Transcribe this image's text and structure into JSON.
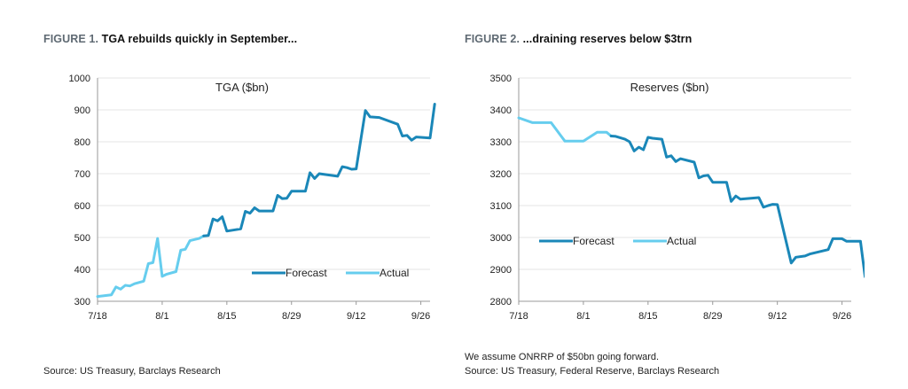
{
  "figure1": {
    "label": "FIGURE 1.",
    "text": "TGA rebuilds quickly in September...",
    "source": "Source: US Treasury, Barclays Research"
  },
  "figure2": {
    "label": "FIGURE 2.",
    "text": "...draining reserves below $3trn",
    "note": "We assume ONRRP of $50bn going forward.",
    "source": "Source: US Treasury, Federal Reserve, Barclays Research"
  },
  "colors": {
    "forecast": "#1a87b8",
    "actual": "#66cdee",
    "axis": "#999999",
    "grid": "#e6e6e6"
  },
  "chart_data": [
    {
      "type": "line",
      "title": "TGA ($bn)",
      "xlabel": "",
      "ylabel": "",
      "xlim": [
        0,
        72
      ],
      "ylim": [
        300,
        1000
      ],
      "yticks": [
        300,
        400,
        500,
        600,
        700,
        800,
        900,
        1000
      ],
      "xticks": [
        {
          "x": 0,
          "label": "7/18"
        },
        {
          "x": 14,
          "label": "8/1"
        },
        {
          "x": 28,
          "label": "8/15"
        },
        {
          "x": 42,
          "label": "8/29"
        },
        {
          "x": 56,
          "label": "9/12"
        },
        {
          "x": 70,
          "label": "9/26"
        }
      ],
      "legend": {
        "position": "bottom-right",
        "entries": [
          "Forecast",
          "Actual"
        ]
      },
      "series": [
        {
          "name": "Actual",
          "points": [
            [
              0,
              315
            ],
            [
              3,
              320
            ],
            [
              4,
              345
            ],
            [
              5,
              338
            ],
            [
              6,
              350
            ],
            [
              7,
              348
            ],
            [
              8,
              355
            ],
            [
              10,
              363
            ],
            [
              11,
              418
            ],
            [
              12,
              421
            ],
            [
              13,
              497
            ],
            [
              14,
              378
            ],
            [
              15,
              385
            ],
            [
              17,
              393
            ],
            [
              18,
              460
            ],
            [
              19,
              463
            ],
            [
              20,
              490
            ],
            [
              22,
              497
            ],
            [
              23,
              505
            ]
          ]
        },
        {
          "name": "Forecast",
          "points": [
            [
              23,
              505
            ],
            [
              24,
              506
            ],
            [
              25,
              558
            ],
            [
              26,
              552
            ],
            [
              27,
              565
            ],
            [
              28,
              520
            ],
            [
              31,
              527
            ],
            [
              32,
              582
            ],
            [
              33,
              576
            ],
            [
              34,
              593
            ],
            [
              35,
              583
            ],
            [
              38,
              583
            ],
            [
              39,
              632
            ],
            [
              40,
              622
            ],
            [
              41,
              623
            ],
            [
              42,
              645
            ],
            [
              45,
              645
            ],
            [
              46,
              703
            ],
            [
              47,
              685
            ],
            [
              48,
              700
            ],
            [
              52,
              692
            ],
            [
              53,
              722
            ],
            [
              54,
              719
            ],
            [
              55,
              714
            ],
            [
              56,
              715
            ],
            [
              58,
              898
            ],
            [
              59,
              878
            ],
            [
              61,
              876
            ],
            [
              65,
              855
            ],
            [
              66,
              818
            ],
            [
              67,
              820
            ],
            [
              68,
              805
            ],
            [
              69,
              815
            ],
            [
              72,
              812
            ],
            [
              73,
              918
            ]
          ]
        }
      ]
    },
    {
      "type": "line",
      "title": "Reserves ($bn)",
      "xlabel": "",
      "ylabel": "",
      "xlim": [
        0,
        72
      ],
      "ylim": [
        2800,
        3500
      ],
      "yticks": [
        2800,
        2900,
        3000,
        3100,
        3200,
        3300,
        3400,
        3500
      ],
      "xticks": [
        {
          "x": 0,
          "label": "7/18"
        },
        {
          "x": 14,
          "label": "8/1"
        },
        {
          "x": 28,
          "label": "8/15"
        },
        {
          "x": 42,
          "label": "8/29"
        },
        {
          "x": 56,
          "label": "9/12"
        },
        {
          "x": 70,
          "label": "9/26"
        }
      ],
      "legend": {
        "position": "center-left",
        "entries": [
          "Forecast",
          "Actual"
        ]
      },
      "series": [
        {
          "name": "Actual",
          "points": [
            [
              0,
              3375
            ],
            [
              3,
              3360
            ],
            [
              7,
              3360
            ],
            [
              10,
              3302
            ],
            [
              14,
              3302
            ],
            [
              17,
              3330
            ],
            [
              19,
              3330
            ],
            [
              20,
              3318
            ]
          ]
        },
        {
          "name": "Forecast",
          "points": [
            [
              20,
              3318
            ],
            [
              21,
              3317
            ],
            [
              23,
              3308
            ],
            [
              24,
              3300
            ],
            [
              25,
              3271
            ],
            [
              26,
              3283
            ],
            [
              27,
              3275
            ],
            [
              28,
              3314
            ],
            [
              29,
              3311
            ],
            [
              31,
              3308
            ],
            [
              32,
              3252
            ],
            [
              33,
              3256
            ],
            [
              34,
              3238
            ],
            [
              35,
              3247
            ],
            [
              38,
              3236
            ],
            [
              39,
              3187
            ],
            [
              40,
              3193
            ],
            [
              41,
              3195
            ],
            [
              42,
              3173
            ],
            [
              45,
              3173
            ],
            [
              46,
              3113
            ],
            [
              47,
              3130
            ],
            [
              48,
              3120
            ],
            [
              52,
              3125
            ],
            [
              53,
              3095
            ],
            [
              54,
              3100
            ],
            [
              55,
              3104
            ],
            [
              56,
              3103
            ],
            [
              59,
              2920
            ],
            [
              60,
              2938
            ],
            [
              62,
              2942
            ],
            [
              63,
              2948
            ],
            [
              67,
              2962
            ],
            [
              68,
              2996
            ],
            [
              70,
              2996
            ],
            [
              71,
              2988
            ],
            [
              74,
              2988
            ],
            [
              75,
              2877
            ]
          ]
        }
      ]
    }
  ]
}
